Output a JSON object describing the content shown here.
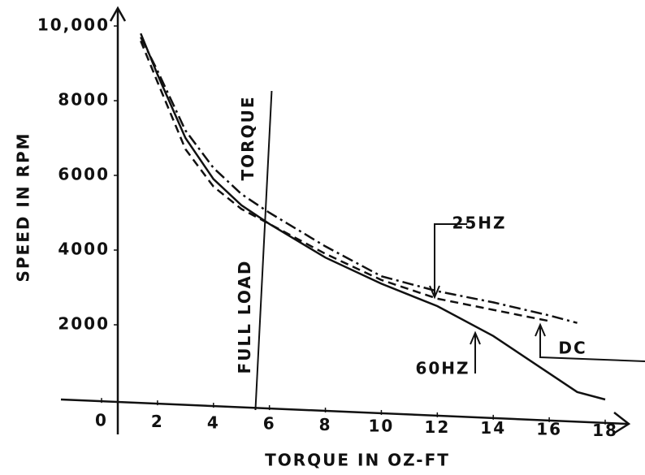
{
  "chart_data": {
    "type": "line",
    "y_label": "SPEED IN RPM",
    "x_label": "TORQUE IN OZ-FT",
    "x": [
      1.4,
      2,
      3,
      4,
      5,
      6,
      8,
      10,
      12,
      14,
      16,
      17,
      18
    ],
    "series": [
      {
        "name": "60HZ",
        "color": "#111111",
        "dash": "solid",
        "values": [
          9800,
          8700,
          7000,
          5900,
          5200,
          4700,
          3800,
          3100,
          2500,
          1700,
          700,
          200,
          0
        ]
      },
      {
        "name": "DC",
        "color": "#111111",
        "dash": "dashed",
        "values": [
          9600,
          8500,
          6700,
          5700,
          5100,
          4700,
          3900,
          3200,
          2700,
          2400,
          2100,
          null,
          null
        ]
      },
      {
        "name": "25HZ",
        "color": "#111111",
        "dash": "dashdot",
        "values": [
          9700,
          8800,
          7200,
          6200,
          5500,
          5000,
          4100,
          3300,
          2900,
          2600,
          2250,
          2050,
          null
        ]
      }
    ],
    "xlim": [
      0,
      18
    ],
    "ylim": [
      0,
      10000
    ],
    "xticks": [
      0,
      2,
      4,
      6,
      8,
      10,
      12,
      14,
      16,
      18
    ],
    "yticks": [
      2000,
      4000,
      6000,
      8000,
      {
        "value": 10000,
        "label": "10,000"
      }
    ],
    "grid": false,
    "vline": {
      "x": 5.5,
      "labels": [
        "FULL LOAD",
        "TORQUE"
      ]
    }
  }
}
